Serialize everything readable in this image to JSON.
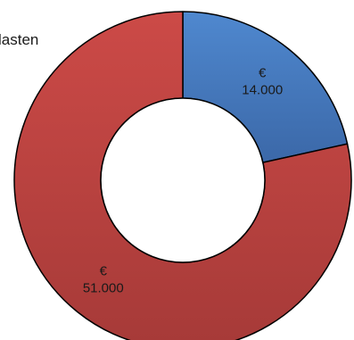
{
  "chart_data": {
    "type": "pie",
    "style": "donut",
    "series": [
      {
        "values": [
          14000,
          51000
        ],
        "labels": [
          "€\n14.000",
          "€\n51.000"
        ],
        "colors": [
          "#4a7ebb",
          "#be4b48"
        ]
      }
    ],
    "visible_text": "lasten"
  }
}
